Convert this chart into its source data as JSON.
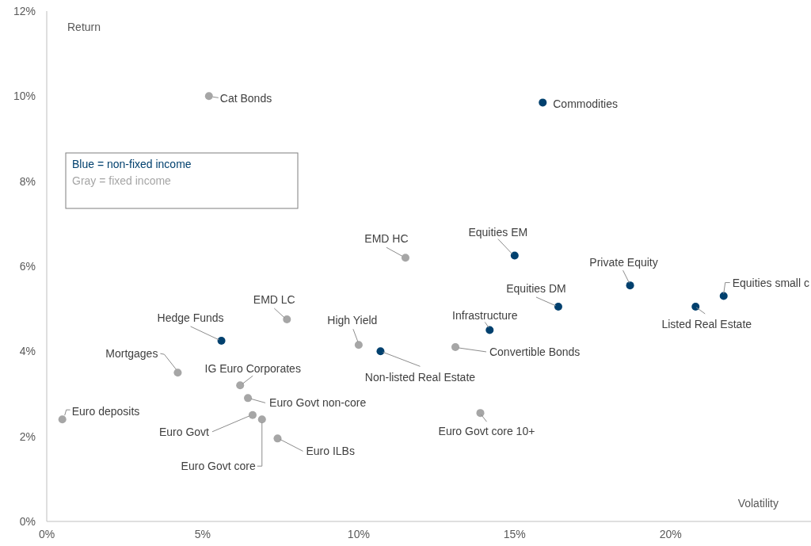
{
  "chart_data": {
    "type": "scatter",
    "xlabel": "Volatility",
    "ylabel": "Return",
    "marker": "circle",
    "xlim": [
      0,
      24.5
    ],
    "xticks": [
      {
        "value": 0,
        "label": "0%"
      },
      {
        "value": 5,
        "label": "5%"
      },
      {
        "value": 10,
        "label": "10%"
      },
      {
        "value": 15,
        "label": "15%"
      },
      {
        "value": 20,
        "label": "20%"
      }
    ],
    "ylim": [
      0,
      12
    ],
    "yticks": [
      {
        "value": 0,
        "label": "0%"
      },
      {
        "value": 2,
        "label": "2%"
      },
      {
        "value": 4,
        "label": "4%"
      },
      {
        "value": 6,
        "label": "6%"
      },
      {
        "value": 8,
        "label": "8%"
      },
      {
        "value": 10,
        "label": "10%"
      },
      {
        "value": 12,
        "label": "12%"
      }
    ],
    "series": [
      {
        "color": "#00406e",
        "x": [
          5.6,
          10.7,
          14.2,
          15.0,
          15.9,
          16.4,
          18.7,
          20.8,
          21.7
        ],
        "values": [
          4.25,
          4.0,
          4.5,
          6.25,
          9.85,
          5.05,
          5.55,
          5.05,
          5.3
        ]
      },
      {
        "color": "#a6a6a6",
        "x": [
          0.5,
          4.2,
          5.2,
          6.2,
          6.45,
          6.6,
          6.9,
          7.4,
          7.7,
          10.0,
          11.5,
          13.1,
          13.9
        ],
        "values": [
          2.4,
          3.5,
          10.0,
          3.2,
          2.9,
          2.5,
          2.4,
          1.95,
          4.75,
          4.15,
          6.2,
          4.1,
          2.55
        ]
      }
    ],
    "annotations": [
      "Blue = non-fixed income",
      "Gray = fixed income",
      {
        "text": "Hedge Funds",
        "x": 5.6,
        "y": 4.25
      },
      {
        "text": "Non-listed Real Estate",
        "x": 10.7,
        "y": 4.0
      },
      {
        "text": "Infrastructure",
        "x": 14.2,
        "y": 4.5
      },
      {
        "text": "Equities EM",
        "x": 15.0,
        "y": 6.25
      },
      {
        "text": "Commodities",
        "x": 15.9,
        "y": 9.85
      },
      {
        "text": "Equities DM",
        "x": 16.4,
        "y": 5.05
      },
      {
        "text": "Private Equity",
        "x": 18.7,
        "y": 5.55
      },
      {
        "text": "Listed Real Estate",
        "x": 20.8,
        "y": 5.05
      },
      {
        "text": "Equities small c",
        "x": 21.7,
        "y": 5.3
      },
      {
        "text": "Euro deposits",
        "x": 0.5,
        "y": 2.4
      },
      {
        "text": "Mortgages",
        "x": 4.2,
        "y": 3.5
      },
      {
        "text": "Cat Bonds",
        "x": 5.2,
        "y": 10.0
      },
      {
        "text": "IG Euro Corporates",
        "x": 6.2,
        "y": 3.2
      },
      {
        "text": "Euro Govt non-core",
        "x": 6.45,
        "y": 2.9
      },
      {
        "text": "Euro Govt",
        "x": 6.6,
        "y": 2.5
      },
      {
        "text": "Euro Govt core",
        "x": 6.9,
        "y": 2.4
      },
      {
        "text": "Euro ILBs",
        "x": 7.4,
        "y": 1.95
      },
      {
        "text": "EMD LC",
        "x": 7.7,
        "y": 4.75
      },
      {
        "text": "High Yield",
        "x": 10.0,
        "y": 4.15
      },
      {
        "text": "EMD HC",
        "x": 11.5,
        "y": 6.2
      },
      {
        "text": "Convertible Bonds",
        "x": 13.1,
        "y": 4.1
      },
      {
        "text": "Euro Govt core 10+",
        "x": 13.9,
        "y": 2.55
      }
    ]
  }
}
